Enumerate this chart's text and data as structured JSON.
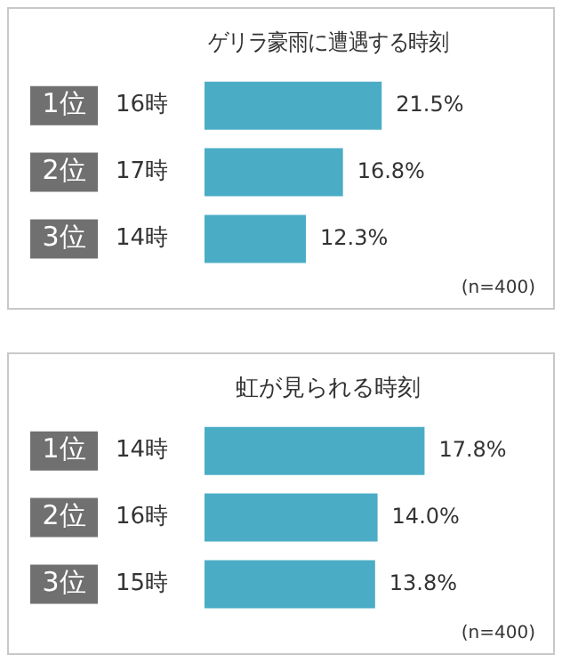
{
  "chart_data": [
    {
      "type": "bar",
      "orientation": "horizontal",
      "title": "ゲリラ豪雨に遭遇する時刻",
      "categories": [
        "1位 16時",
        "2位 17時",
        "3位 14時"
      ],
      "values": [
        21.5,
        16.8,
        12.3
      ],
      "value_labels": [
        "21.5%",
        "16.8%",
        "12.3%"
      ],
      "color": "#4bacc6",
      "annotations": [
        "(n=400)"
      ]
    },
    {
      "type": "bar",
      "orientation": "horizontal",
      "title": "虹が見られる時刻",
      "categories": [
        "1位 14時",
        "2位 16時",
        "3位 15時"
      ],
      "values": [
        17.8,
        14.0,
        13.8
      ],
      "value_labels": [
        "17.8%",
        "14.0%",
        "13.8%"
      ],
      "color": "#4bacc6",
      "annotations": [
        "(n=400)"
      ]
    }
  ]
}
